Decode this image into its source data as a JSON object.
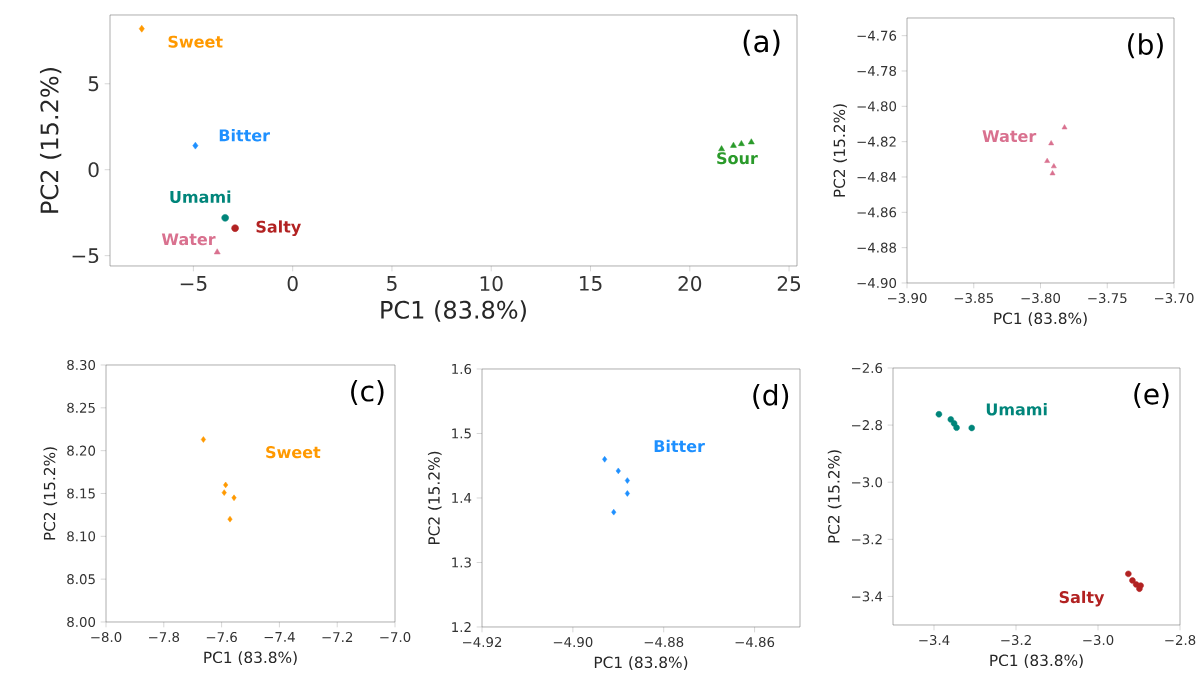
{
  "chart_data": [
    {
      "type": "scatter",
      "xlabel": "PC1 (83.8%)",
      "ylabel": "PC2 (15.2%)",
      "annotations": [
        "(a)"
      ],
      "xlim": [
        -9.2,
        25.4
      ],
      "ylim": [
        -5.6,
        9.0
      ],
      "xticks": [
        {
          "value": -5,
          "label": "−5"
        },
        0,
        5,
        10,
        15,
        20,
        25
      ],
      "yticks": [
        {
          "value": -5,
          "label": "−5"
        },
        0,
        5
      ],
      "series": [
        {
          "name": "Sweet",
          "color": "#ff9900",
          "marker": "diamond",
          "x": [
            -7.6
          ],
          "values": [
            8.2
          ]
        },
        {
          "name": "Bitter",
          "color": "#1e90ff",
          "marker": "diamond",
          "x": [
            -4.9
          ],
          "values": [
            1.4
          ]
        },
        {
          "name": "Umami",
          "color": "#00857a",
          "marker": "circle",
          "x": [
            -3.4
          ],
          "values": [
            -2.8
          ]
        },
        {
          "name": "Salty",
          "color": "#b22222",
          "marker": "circle",
          "x": [
            -2.9
          ],
          "values": [
            -3.4
          ]
        },
        {
          "name": "Water",
          "color": "#d9718f",
          "marker": "triangle",
          "x": [
            -3.8
          ],
          "values": [
            -4.8
          ]
        },
        {
          "name": "Sour",
          "color": "#2a9a2a",
          "marker": "triangle",
          "x": [
            21.6,
            22.2,
            22.6,
            23.1
          ],
          "values": [
            1.2,
            1.4,
            1.5,
            1.6
          ]
        }
      ]
    },
    {
      "type": "scatter",
      "xlabel": "PC1 (83.8%)",
      "ylabel": "PC2 (15.2%)",
      "annotations": [
        "(b)"
      ],
      "xlim": [
        -3.9,
        -3.7
      ],
      "ylim": [
        -4.9,
        -4.75
      ],
      "xticks": [
        {
          "value": -3.9,
          "label": "−3.90"
        },
        {
          "value": -3.85,
          "label": "−3.85"
        },
        {
          "value": -3.8,
          "label": "−3.80"
        },
        {
          "value": -3.75,
          "label": "−3.75"
        },
        {
          "value": -3.7,
          "label": "−3.70"
        }
      ],
      "yticks": [
        {
          "value": -4.9,
          "label": "−4.90"
        },
        {
          "value": -4.88,
          "label": "−4.88"
        },
        {
          "value": -4.86,
          "label": "−4.86"
        },
        {
          "value": -4.84,
          "label": "−4.84"
        },
        {
          "value": -4.82,
          "label": "−4.82"
        },
        {
          "value": -4.8,
          "label": "−4.80"
        },
        {
          "value": -4.78,
          "label": "−4.78"
        },
        {
          "value": -4.76,
          "label": "−4.76"
        }
      ],
      "series": [
        {
          "name": "Water",
          "color": "#d9718f",
          "marker": "triangle",
          "x": [
            -3.782,
            -3.792,
            -3.795,
            -3.79,
            -3.791
          ],
          "values": [
            -4.812,
            -4.821,
            -4.831,
            -4.834,
            -4.838
          ]
        }
      ]
    },
    {
      "type": "scatter",
      "xlabel": "PC1 (83.8%)",
      "ylabel": "PC2 (15.2%)",
      "annotations": [
        "(c)"
      ],
      "xlim": [
        -8.0,
        -7.0
      ],
      "ylim": [
        8.0,
        8.3
      ],
      "xticks": [
        {
          "value": -8.0,
          "label": "−8.0"
        },
        {
          "value": -7.8,
          "label": "−7.8"
        },
        {
          "value": -7.6,
          "label": "−7.6"
        },
        {
          "value": -7.4,
          "label": "−7.4"
        },
        {
          "value": -7.2,
          "label": "−7.2"
        },
        {
          "value": -7.0,
          "label": "−7.0"
        }
      ],
      "yticks": [
        {
          "value": 8.0,
          "label": "8.00"
        },
        8.05,
        {
          "value": 8.1,
          "label": "8.10"
        },
        8.15,
        {
          "value": 8.2,
          "label": "8.20"
        },
        8.25,
        {
          "value": 8.3,
          "label": "8.30"
        }
      ],
      "series": [
        {
          "name": "Sweet",
          "color": "#ff9900",
          "marker": "diamond",
          "x": [
            -7.663,
            -7.586,
            -7.591,
            -7.557,
            -7.571
          ],
          "values": [
            8.213,
            8.16,
            8.151,
            8.145,
            8.12
          ]
        }
      ]
    },
    {
      "type": "scatter",
      "xlabel": "PC1 (83.8%)",
      "ylabel": "PC2 (15.2%)",
      "annotations": [
        "(d)"
      ],
      "xlim": [
        -4.92,
        -4.85
      ],
      "ylim": [
        1.2,
        1.6
      ],
      "xticks": [
        {
          "value": -4.92,
          "label": "−4.92"
        },
        {
          "value": -4.9,
          "label": "−4.90"
        },
        {
          "value": -4.88,
          "label": "−4.88"
        },
        {
          "value": -4.86,
          "label": "−4.86"
        }
      ],
      "yticks": [
        1.2,
        1.3,
        1.4,
        1.5,
        1.6
      ],
      "series": [
        {
          "name": "Bitter",
          "color": "#1e90ff",
          "marker": "diamond",
          "x": [
            -4.893,
            -4.89,
            -4.888,
            -4.888,
            -4.891
          ],
          "values": [
            1.46,
            1.442,
            1.427,
            1.407,
            1.378
          ]
        }
      ]
    },
    {
      "type": "scatter",
      "xlabel": "PC1 (83.8%)",
      "ylabel": "PC2 (15.2%)",
      "annotations": [
        "(e)"
      ],
      "xlim": [
        -3.5,
        -2.8
      ],
      "ylim": [
        -3.5,
        -2.6
      ],
      "xticks": [
        {
          "value": -3.4,
          "label": "−3.4"
        },
        {
          "value": -3.2,
          "label": "−3.2"
        },
        {
          "value": -3.0,
          "label": "−3.0"
        },
        {
          "value": -2.8,
          "label": "−2.8"
        }
      ],
      "yticks": [
        {
          "value": -3.4,
          "label": "−3.4"
        },
        {
          "value": -3.2,
          "label": "−3.2"
        },
        {
          "value": -3.0,
          "label": "−3.0"
        },
        {
          "value": -2.8,
          "label": "−2.8"
        },
        {
          "value": -2.6,
          "label": "−2.6"
        }
      ],
      "series": [
        {
          "name": "Umami",
          "color": "#00857a",
          "marker": "circle",
          "x": [
            -3.388,
            -3.359,
            -3.351,
            -3.345,
            -3.308
          ],
          "values": [
            -2.762,
            -2.78,
            -2.794,
            -2.809,
            -2.81
          ]
        },
        {
          "name": "Salty",
          "color": "#b22222",
          "marker": "circle",
          "x": [
            -2.926,
            -2.916,
            -2.907,
            -2.899,
            -2.896
          ],
          "values": [
            -3.321,
            -3.344,
            -3.358,
            -3.373,
            -3.362
          ]
        }
      ]
    }
  ]
}
